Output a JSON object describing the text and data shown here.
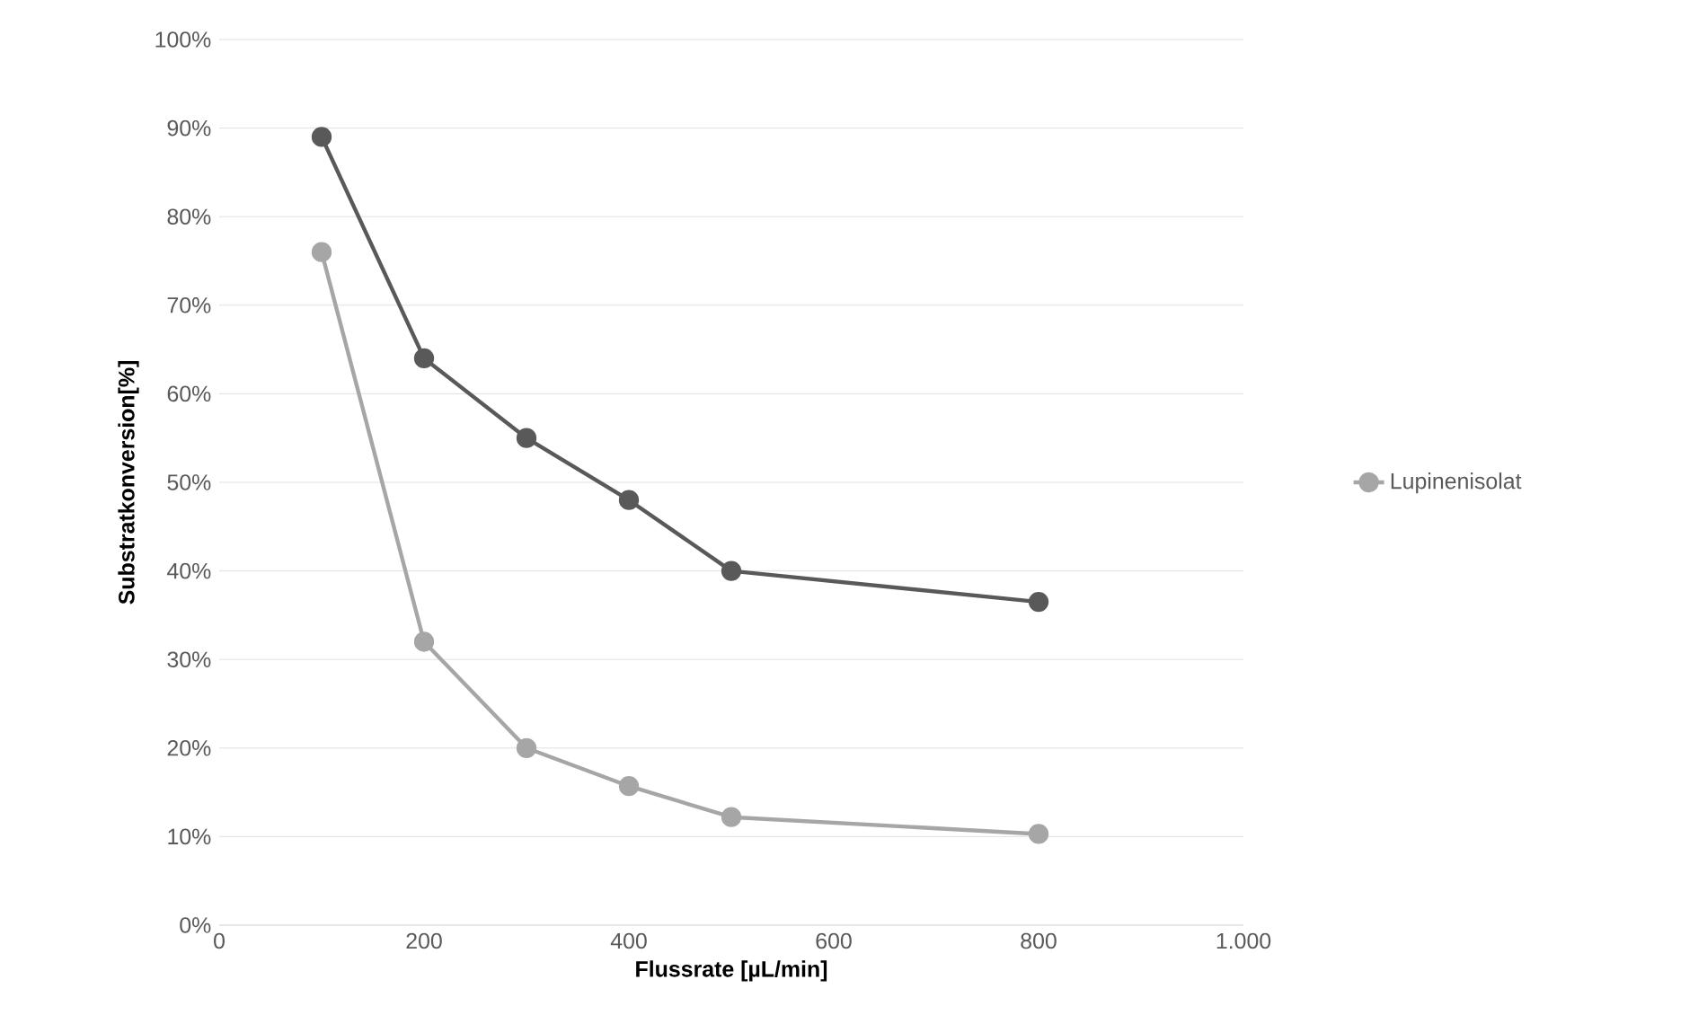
{
  "chart_data": {
    "type": "line",
    "xlabel": "Flussrate [µL/min]",
    "ylabel": "Substratkonversion[%]",
    "xlim": [
      0,
      1000
    ],
    "xticks": [
      0,
      200,
      400,
      600,
      800,
      {
        "value": 1000,
        "label": "1.000"
      }
    ],
    "ylim": [
      0,
      100
    ],
    "yticks": [
      {
        "value": 0,
        "label": "0%"
      },
      {
        "value": 10,
        "label": "10%"
      },
      {
        "value": 20,
        "label": "20%"
      },
      {
        "value": 30,
        "label": "30%"
      },
      {
        "value": 40,
        "label": "40%"
      },
      {
        "value": 50,
        "label": "50%"
      },
      {
        "value": 60,
        "label": "60%"
      },
      {
        "value": 70,
        "label": "70%"
      },
      {
        "value": 80,
        "label": "80%"
      },
      {
        "value": 90,
        "label": "90%"
      },
      {
        "value": 100,
        "label": "100%"
      }
    ],
    "x": [
      100,
      200,
      300,
      400,
      500,
      800
    ],
    "series": [
      {
        "color": "#595959",
        "values": [
          89,
          64,
          55,
          48,
          40,
          36.5
        ]
      },
      {
        "name": "Lupinenisolat",
        "color": "#a6a6a6",
        "values": [
          76,
          32,
          20,
          15.7,
          12.2,
          10.3
        ]
      }
    ],
    "grid": "y",
    "legend": "right",
    "marker": "circle",
    "line_style": "solid"
  }
}
